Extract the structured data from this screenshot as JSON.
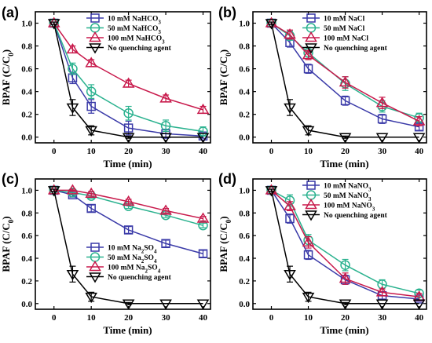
{
  "chart_data": [
    {
      "type": "line",
      "panel": "(a)",
      "xlabel": "Time  (min)",
      "ylabel": "BPAF  (C/C",
      "ylabel_sub": "0",
      "ylabel_end": ")",
      "xlim": [
        -5,
        42
      ],
      "ylim": [
        -0.05,
        1.1
      ],
      "xticks": [
        "0",
        "10",
        "20",
        "30",
        "40"
      ],
      "yticks": [
        "0.0",
        "0.2",
        "0.4",
        "0.6",
        "0.8",
        "1.0"
      ],
      "legend_position": "top-right",
      "series": [
        {
          "name": "10 mM NaHCO",
          "name_sub": "3",
          "color": "#3a3aa8",
          "marker": "square",
          "x": [
            0,
            5,
            10,
            20,
            30,
            40
          ],
          "y": [
            1.0,
            0.52,
            0.27,
            0.08,
            0.03,
            0.01
          ],
          "err": [
            0.01,
            0.05,
            0.06,
            0.06,
            0.04,
            0.02
          ]
        },
        {
          "name": "50 mM NaHCO",
          "name_sub": "3",
          "color": "#2bb28f",
          "marker": "circle",
          "x": [
            0,
            5,
            10,
            20,
            30,
            40
          ],
          "y": [
            1.0,
            0.6,
            0.4,
            0.21,
            0.1,
            0.05
          ],
          "err": [
            0.01,
            0.05,
            0.06,
            0.06,
            0.05,
            0.04
          ]
        },
        {
          "name": "100 mM NaHCO",
          "name_sub": "3",
          "color": "#c8194b",
          "marker": "triangle-up",
          "x": [
            0,
            5,
            10,
            20,
            30,
            40
          ],
          "y": [
            1.0,
            0.77,
            0.65,
            0.47,
            0.34,
            0.24
          ],
          "err": [
            0.01,
            0.03,
            0.03,
            0.03,
            0.03,
            0.03
          ]
        },
        {
          "name": "No quenching agent",
          "name_sub": "",
          "color": "#000000",
          "marker": "triangle-down",
          "x": [
            0,
            5,
            10,
            20,
            30,
            40
          ],
          "y": [
            1.0,
            0.26,
            0.06,
            0.0,
            0.0,
            0.0
          ],
          "err": [
            0.01,
            0.07,
            0.04,
            0.01,
            0.0,
            0.0
          ]
        }
      ]
    },
    {
      "type": "line",
      "panel": "(b)",
      "xlabel": "Time  (min)",
      "ylabel": "BPAF  (C/C",
      "ylabel_sub": "0",
      "ylabel_end": ")",
      "xlim": [
        -5,
        42
      ],
      "ylim": [
        -0.05,
        1.1
      ],
      "xticks": [
        "0",
        "10",
        "20",
        "30",
        "40"
      ],
      "yticks": [
        "0.0",
        "0.2",
        "0.4",
        "0.6",
        "0.8",
        "1.0"
      ],
      "legend_position": "top-right",
      "series": [
        {
          "name": "10 mM NaCl",
          "name_sub": "",
          "color": "#3a3aa8",
          "marker": "square",
          "x": [
            0,
            5,
            10,
            20,
            30,
            40
          ],
          "y": [
            1.0,
            0.83,
            0.6,
            0.32,
            0.16,
            0.09
          ],
          "err": [
            0.01,
            0.04,
            0.04,
            0.04,
            0.04,
            0.03
          ]
        },
        {
          "name": "50 mM NaCl",
          "name_sub": "",
          "color": "#2bb28f",
          "marker": "circle",
          "x": [
            0,
            5,
            10,
            20,
            30,
            40
          ],
          "y": [
            1.0,
            0.89,
            0.74,
            0.47,
            0.27,
            0.17
          ],
          "err": [
            0.01,
            0.04,
            0.05,
            0.06,
            0.05,
            0.04
          ]
        },
        {
          "name": "100 mM NaCl",
          "name_sub": "",
          "color": "#c8194b",
          "marker": "triangle-up",
          "x": [
            0,
            5,
            10,
            20,
            30,
            40
          ],
          "y": [
            1.0,
            0.9,
            0.72,
            0.48,
            0.3,
            0.14
          ],
          "err": [
            0.01,
            0.04,
            0.04,
            0.05,
            0.05,
            0.04
          ]
        },
        {
          "name": "No quenching agent",
          "name_sub": "",
          "color": "#000000",
          "marker": "triangle-down",
          "x": [
            0,
            5,
            10,
            20,
            30,
            40
          ],
          "y": [
            1.0,
            0.26,
            0.06,
            0.0,
            0.0,
            0.0
          ],
          "err": [
            0.01,
            0.07,
            0.04,
            0.01,
            0.0,
            0.0
          ]
        }
      ]
    },
    {
      "type": "line",
      "panel": "(c)",
      "xlabel": "Time  (min)",
      "ylabel": "BPAF  (C/C",
      "ylabel_sub": "0",
      "ylabel_end": ")",
      "xlim": [
        -5,
        42
      ],
      "ylim": [
        -0.05,
        1.1
      ],
      "xticks": [
        "0",
        "10",
        "20",
        "30",
        "40"
      ],
      "yticks": [
        "0.0",
        "0.2",
        "0.4",
        "0.6",
        "0.8",
        "1.0"
      ],
      "legend_position": "bottom-right",
      "series": [
        {
          "name": "10 mM Na",
          "name_sub": "2",
          "name_tail": "SO",
          "name_sub2": "4",
          "color": "#3a3aa8",
          "marker": "square",
          "x": [
            0,
            5,
            10,
            20,
            30,
            40
          ],
          "y": [
            1.0,
            0.96,
            0.84,
            0.65,
            0.53,
            0.44
          ],
          "err": [
            0.01,
            0.02,
            0.03,
            0.03,
            0.03,
            0.03
          ]
        },
        {
          "name": "50 mM Na",
          "name_sub": "2",
          "name_tail": "SO",
          "name_sub2": "4",
          "color": "#2bb28f",
          "marker": "circle",
          "x": [
            0,
            5,
            10,
            20,
            30,
            40
          ],
          "y": [
            1.0,
            0.98,
            0.95,
            0.86,
            0.78,
            0.69
          ],
          "err": [
            0.01,
            0.02,
            0.02,
            0.02,
            0.02,
            0.02
          ]
        },
        {
          "name": "100 mM Na",
          "name_sub": "2",
          "name_tail": "SO",
          "name_sub2": "4",
          "color": "#c8194b",
          "marker": "triangle-up",
          "x": [
            0,
            5,
            10,
            20,
            30,
            40
          ],
          "y": [
            1.0,
            1.0,
            0.97,
            0.9,
            0.82,
            0.75
          ],
          "err": [
            0.01,
            0.01,
            0.02,
            0.02,
            0.02,
            0.02
          ]
        },
        {
          "name": "No quenching agent",
          "name_sub": "",
          "color": "#000000",
          "marker": "triangle-down",
          "x": [
            0,
            5,
            10,
            20,
            30,
            40
          ],
          "y": [
            1.0,
            0.26,
            0.06,
            0.0,
            0.0,
            0.0
          ],
          "err": [
            0.01,
            0.07,
            0.04,
            0.01,
            0.0,
            0.0
          ]
        }
      ]
    },
    {
      "type": "line",
      "panel": "(d)",
      "xlabel": "Time  (min)",
      "ylabel": "BPAF  (C/C",
      "ylabel_sub": "0",
      "ylabel_end": ")",
      "xlim": [
        -5,
        42
      ],
      "ylim": [
        -0.05,
        1.1
      ],
      "xticks": [
        "0",
        "10",
        "20",
        "30",
        "40"
      ],
      "yticks": [
        "0.0",
        "0.2",
        "0.4",
        "0.6",
        "0.8",
        "1.0"
      ],
      "legend_position": "top-right",
      "series": [
        {
          "name": "10 mM NaNO",
          "name_sub": "3",
          "color": "#3a3aa8",
          "marker": "square",
          "x": [
            0,
            5,
            10,
            20,
            30,
            40
          ],
          "y": [
            1.0,
            0.75,
            0.43,
            0.21,
            0.07,
            0.04
          ],
          "err": [
            0.01,
            0.04,
            0.04,
            0.04,
            0.03,
            0.02
          ]
        },
        {
          "name": "50 mM NaNO",
          "name_sub": "3",
          "color": "#2bb28f",
          "marker": "circle",
          "x": [
            0,
            5,
            10,
            20,
            30,
            40
          ],
          "y": [
            1.0,
            0.91,
            0.56,
            0.34,
            0.17,
            0.09
          ],
          "err": [
            0.01,
            0.05,
            0.05,
            0.05,
            0.04,
            0.03
          ]
        },
        {
          "name": "100 mM NaNO",
          "name_sub": "3",
          "color": "#c8194b",
          "marker": "triangle-up",
          "x": [
            0,
            5,
            10,
            20,
            30,
            40
          ],
          "y": [
            1.0,
            0.86,
            0.54,
            0.22,
            0.1,
            0.06
          ],
          "err": [
            0.01,
            0.04,
            0.05,
            0.05,
            0.03,
            0.03
          ]
        },
        {
          "name": "No quenching agent",
          "name_sub": "",
          "color": "#000000",
          "marker": "triangle-down",
          "x": [
            0,
            5,
            10,
            20,
            30,
            40
          ],
          "y": [
            1.0,
            0.26,
            0.06,
            0.0,
            0.0,
            0.0
          ],
          "err": [
            0.01,
            0.07,
            0.04,
            0.01,
            0.0,
            0.0
          ]
        }
      ]
    }
  ]
}
